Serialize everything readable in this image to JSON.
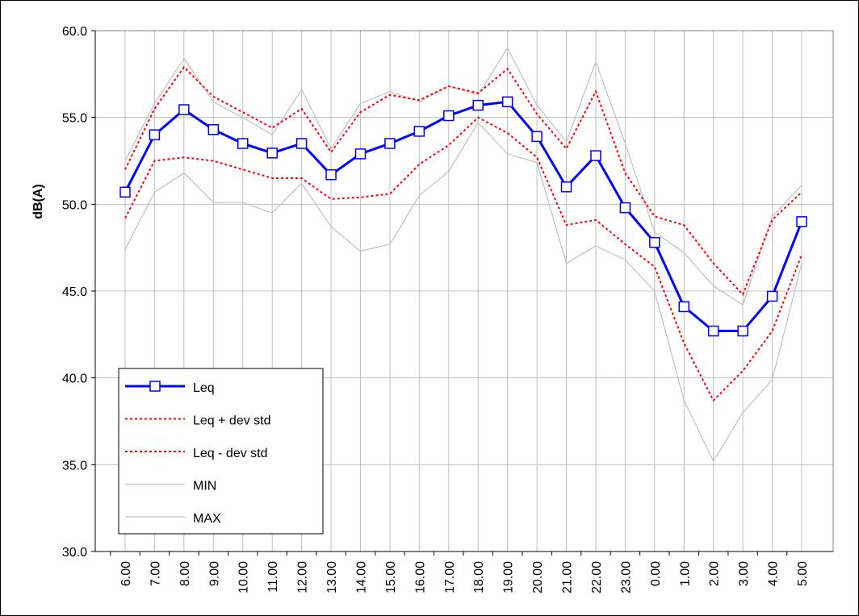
{
  "chart_data": {
    "type": "line",
    "y_label": "dB(A)",
    "categories": [
      "6.00",
      "7.00",
      "8.00",
      "9.00",
      "10.00",
      "11.00",
      "12.00",
      "13.00",
      "14.00",
      "15.00",
      "16.00",
      "17.00",
      "18.00",
      "19.00",
      "20.00",
      "21.00",
      "22.00",
      "23.00",
      "0.00",
      "1.00",
      "2.00",
      "3.00",
      "4.00",
      "5.00"
    ],
    "ylim": [
      30,
      60
    ],
    "yticks": [
      {
        "value": 30,
        "label": "30.0"
      },
      {
        "value": 35,
        "label": "35.0"
      },
      {
        "value": 40,
        "label": "40.0"
      },
      {
        "value": 45,
        "label": "45.0"
      },
      {
        "value": 50,
        "label": "50.0"
      },
      {
        "value": 55,
        "label": "55.0"
      },
      {
        "value": 60,
        "label": "60.0"
      }
    ],
    "grid": true,
    "legend": "lower-left",
    "series": [
      {
        "name": "Leq",
        "color": "#0000ff",
        "marker": "square",
        "values": [
          50.7,
          54.0,
          55.45,
          54.3,
          53.5,
          52.95,
          53.5,
          51.7,
          52.9,
          53.5,
          54.2,
          55.1,
          55.7,
          55.9,
          53.9,
          51.0,
          52.8,
          49.8,
          47.8,
          44.1,
          42.7,
          42.7,
          44.7,
          49.0
        ]
      },
      {
        "name": "Leq + dev std",
        "color": "#ff0000",
        "dash": true,
        "values": [
          52.0,
          55.5,
          57.9,
          56.2,
          55.3,
          54.4,
          55.5,
          53.0,
          55.3,
          56.3,
          56.0,
          56.8,
          56.4,
          57.8,
          55.2,
          53.2,
          56.5,
          51.8,
          49.3,
          48.8,
          46.6,
          44.8,
          49.1,
          50.7
        ]
      },
      {
        "name": "Leq - dev std",
        "color": "#ff0000",
        "dash": true,
        "values": [
          49.2,
          52.5,
          52.7,
          52.5,
          52.0,
          51.5,
          51.5,
          50.3,
          50.4,
          50.6,
          52.3,
          53.4,
          55.0,
          54.1,
          52.7,
          48.8,
          49.1,
          47.7,
          46.4,
          42.0,
          38.7,
          40.4,
          42.7,
          47.1
        ]
      },
      {
        "name": "MIN",
        "color": "#c0c0c0",
        "values": [
          47.4,
          50.7,
          51.8,
          50.1,
          50.1,
          49.5,
          51.2,
          48.7,
          47.3,
          47.7,
          50.5,
          51.9,
          54.7,
          52.9,
          52.4,
          46.6,
          47.6,
          46.8,
          45.0,
          38.7,
          35.2,
          38.0,
          39.9,
          46.6
        ]
      },
      {
        "name": "MAX",
        "color": "#c0c0c0",
        "values": [
          52.5,
          55.8,
          58.4,
          55.9,
          55.0,
          54.0,
          56.6,
          53.2,
          55.8,
          56.5,
          55.9,
          56.8,
          56.3,
          59.0,
          55.7,
          53.6,
          58.2,
          53.5,
          48.4,
          47.2,
          45.3,
          44.2,
          49.3,
          51.1
        ]
      }
    ]
  }
}
